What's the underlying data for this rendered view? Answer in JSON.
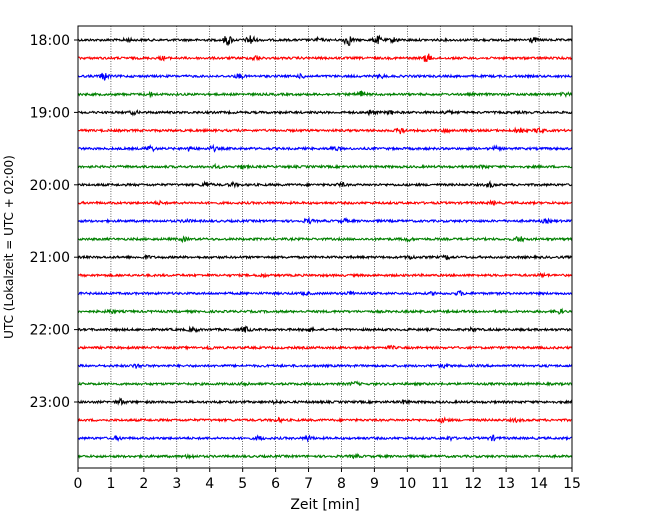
{
  "chart_data": {
    "type": "line",
    "subtype": "helicorder",
    "xlabel": "Zeit  [min]",
    "ylabel": "UTC (Lokalzeit = UTC + 02:00)",
    "xlim": [
      0,
      15
    ],
    "x_ticks": [
      0,
      1,
      2,
      3,
      4,
      5,
      6,
      7,
      8,
      9,
      10,
      11,
      12,
      13,
      14,
      15
    ],
    "x_tick_labels": [
      "0",
      "1",
      "2",
      "3",
      "4",
      "5",
      "6",
      "7",
      "8",
      "9",
      "10",
      "11",
      "12",
      "13",
      "14",
      "15"
    ],
    "vertical_grid": true,
    "y_tick_labels": [
      "18:00",
      "19:00",
      "20:00",
      "21:00",
      "22:00",
      "23:00"
    ],
    "y_tick_trace_index": [
      0,
      4,
      8,
      12,
      16,
      20
    ],
    "trace_minutes": 15,
    "trace_colors": [
      "#000000",
      "#ff0000",
      "#0000ff",
      "#008000"
    ],
    "traces": [
      {
        "start": "18:00",
        "bursts": [
          [
            4.55,
            5
          ],
          [
            5.25,
            5
          ],
          [
            8.2,
            5
          ],
          [
            9.1,
            3.5
          ],
          [
            9.6,
            2
          ],
          [
            13.8,
            2.5
          ],
          [
            1.5,
            1.5
          ],
          [
            7.3,
            1.5
          ]
        ]
      },
      {
        "start": "18:15",
        "bursts": [
          [
            10.6,
            4
          ],
          [
            2.6,
            1.5
          ],
          [
            5.4,
            2
          ]
        ]
      },
      {
        "start": "18:30",
        "bursts": [
          [
            0.8,
            3.5
          ],
          [
            4.9,
            2
          ],
          [
            9.2,
            1.5
          ],
          [
            6.8,
            1.5
          ]
        ]
      },
      {
        "start": "18:45",
        "bursts": [
          [
            8.6,
            3
          ],
          [
            14.8,
            1.5
          ],
          [
            2.2,
            1.5
          ]
        ]
      },
      {
        "start": "19:00",
        "bursts": [
          [
            8.9,
            2
          ],
          [
            9.5,
            1.5
          ],
          [
            1.7,
            1.5
          ],
          [
            11.2,
            1.5
          ]
        ]
      },
      {
        "start": "19:15",
        "bursts": [
          [
            9.8,
            3
          ],
          [
            13.4,
            3
          ],
          [
            14.0,
            2.5
          ],
          [
            11.2,
            1.5
          ]
        ]
      },
      {
        "start": "19:30",
        "bursts": [
          [
            2.2,
            2.5
          ],
          [
            3.4,
            2
          ],
          [
            4.1,
            2
          ],
          [
            7.8,
            1.5
          ],
          [
            12.7,
            1.5
          ]
        ]
      },
      {
        "start": "19:45",
        "bursts": [
          [
            5.0,
            1.5
          ],
          [
            12.3,
            1.5
          ],
          [
            4.2,
            1.2
          ]
        ]
      },
      {
        "start": "20:00",
        "bursts": [
          [
            3.9,
            2.5
          ],
          [
            12.5,
            2
          ],
          [
            8.0,
            1.5
          ],
          [
            4.7,
            1.5
          ]
        ]
      },
      {
        "start": "20:15",
        "bursts": [
          [
            2.5,
            1.2
          ],
          [
            12.6,
            1.2
          ]
        ]
      },
      {
        "start": "20:30",
        "bursts": [
          [
            7.0,
            2
          ],
          [
            8.1,
            1.5
          ],
          [
            14.2,
            1.5
          ],
          [
            3.3,
            1.2
          ]
        ]
      },
      {
        "start": "20:45",
        "bursts": [
          [
            13.4,
            2.5
          ],
          [
            3.2,
            1.5
          ],
          [
            10.0,
            1.5
          ]
        ]
      },
      {
        "start": "21:00",
        "bursts": [
          [
            10.1,
            1.5
          ],
          [
            11.2,
            1.5
          ],
          [
            2.1,
            1.2
          ]
        ]
      },
      {
        "start": "21:15",
        "bursts": [
          [
            5.6,
            1.2
          ],
          [
            14.1,
            1.2
          ]
        ]
      },
      {
        "start": "21:30",
        "bursts": [
          [
            8.3,
            1.8
          ],
          [
            11.6,
            1.8
          ],
          [
            6.9,
            1.2
          ],
          [
            10.8,
            1.2
          ]
        ]
      },
      {
        "start": "21:45",
        "bursts": [
          [
            14.6,
            2
          ],
          [
            1.0,
            1.2
          ]
        ]
      },
      {
        "start": "22:00",
        "bursts": [
          [
            3.5,
            2.5
          ],
          [
            5.1,
            2.5
          ],
          [
            7.0,
            1.5
          ],
          [
            12.0,
            1.5
          ]
        ]
      },
      {
        "start": "22:15",
        "bursts": [
          [
            4.0,
            1.2
          ],
          [
            9.5,
            1.2
          ]
        ]
      },
      {
        "start": "22:30",
        "bursts": [
          [
            1.8,
            2
          ],
          [
            11.1,
            1.5
          ]
        ]
      },
      {
        "start": "22:45",
        "bursts": [
          [
            5.1,
            1.5
          ],
          [
            8.4,
            1.5
          ]
        ]
      },
      {
        "start": "23:00",
        "bursts": [
          [
            1.3,
            2.5
          ],
          [
            6.0,
            1.2
          ],
          [
            9.9,
            1.5
          ]
        ]
      },
      {
        "start": "23:15",
        "bursts": [
          [
            11.1,
            2
          ],
          [
            6.1,
            1.5
          ],
          [
            13.3,
            1.2
          ]
        ]
      },
      {
        "start": "23:30",
        "bursts": [
          [
            1.2,
            1.5
          ],
          [
            5.5,
            1.8
          ],
          [
            7.0,
            2
          ],
          [
            11.3,
            1.5
          ],
          [
            12.6,
            2
          ]
        ]
      },
      {
        "start": "23:45",
        "bursts": [
          [
            3.4,
            1.5
          ],
          [
            8.4,
            1.2
          ]
        ]
      }
    ]
  }
}
